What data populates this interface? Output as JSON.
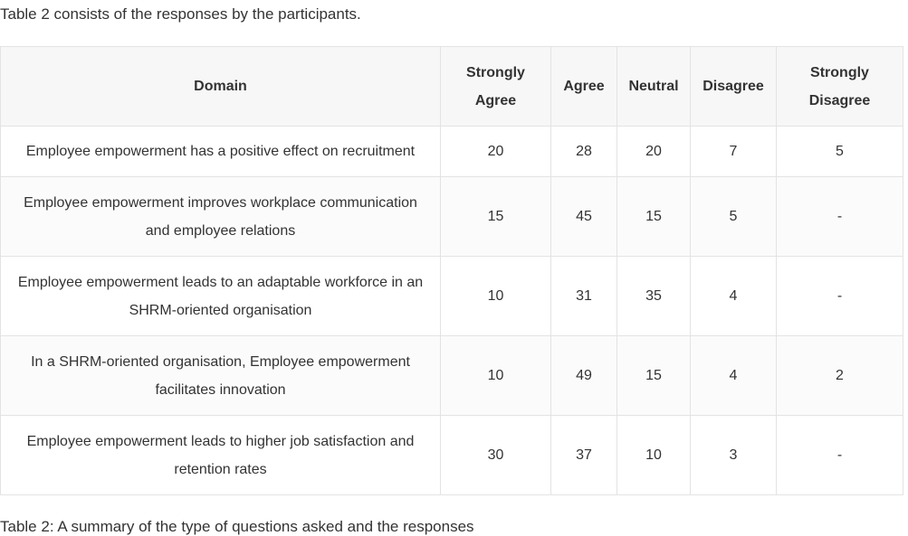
{
  "intro": "Table 2 consists of the responses by the participants.",
  "table": {
    "header": [
      "Domain",
      "Strongly Agree",
      "Agree",
      "Neutral",
      "Disagree",
      "Strongly Disagree"
    ],
    "rows": [
      [
        "Employee empowerment has a positive effect on recruitment",
        20,
        28,
        20,
        7,
        5
      ],
      [
        "Employee empowerment improves workplace communication and employee relations",
        15,
        45,
        15,
        5,
        "-"
      ],
      [
        "Employee empowerment leads to an adaptable workforce in an SHRM-oriented organisation",
        10,
        31,
        35,
        4,
        "-"
      ],
      [
        "In a SHRM-oriented organisation, Employee empowerment facilitates innovation",
        10,
        49,
        15,
        4,
        2
      ],
      [
        "Employee empowerment leads to higher job satisfaction and retention rates",
        30,
        37,
        10,
        3,
        "-"
      ]
    ]
  },
  "caption": "Table 2: A summary of the type of questions asked and the responses"
}
